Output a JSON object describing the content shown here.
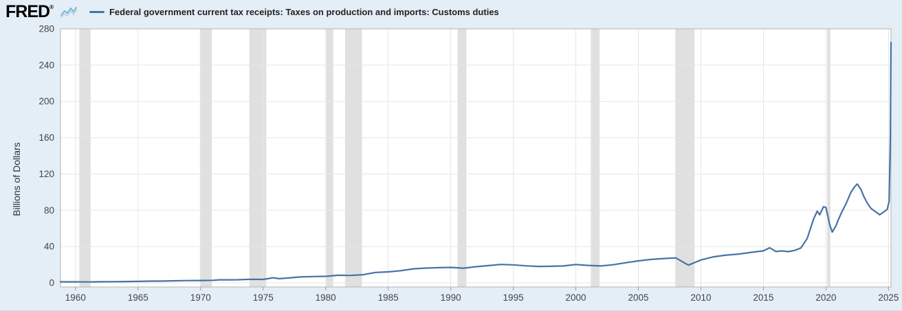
{
  "header": {
    "logo": "FRED",
    "logo_reg": "®",
    "legend_label": "Federal government current tax receipts: Taxes on production and imports: Customs duties"
  },
  "chart_data": {
    "type": "line",
    "title": "Federal government current tax receipts: Taxes on production and imports: Customs duties",
    "ylabel": "Billions of Dollars",
    "xlabel": "",
    "ylim": [
      0,
      280
    ],
    "y_ticks": [
      0,
      40,
      80,
      120,
      160,
      200,
      240,
      280
    ],
    "x_ticks": [
      1960,
      1965,
      1970,
      1975,
      1980,
      1985,
      1990,
      1995,
      2000,
      2005,
      2010,
      2015,
      2020,
      2025
    ],
    "xlim": [
      1958.8,
      2025.2
    ],
    "grid": true,
    "legend_position": "top-left",
    "line_color": "#4572a7",
    "recession_band_color": "#e0e0e0",
    "recessions": [
      [
        1960.3,
        1961.2
      ],
      [
        1969.95,
        1970.9
      ],
      [
        1973.9,
        1975.25
      ],
      [
        1980.05,
        1980.6
      ],
      [
        1981.55,
        1982.9
      ],
      [
        1990.55,
        1991.25
      ],
      [
        2001.2,
        2001.9
      ],
      [
        2007.95,
        2009.5
      ],
      [
        2020.1,
        2020.35
      ]
    ],
    "series": [
      {
        "name": "Customs duties",
        "points": [
          [
            1958.8,
            1.1
          ],
          [
            1960,
            1.1
          ],
          [
            1961,
            1.0
          ],
          [
            1962,
            1.2
          ],
          [
            1963,
            1.3
          ],
          [
            1964,
            1.4
          ],
          [
            1965,
            1.6
          ],
          [
            1966,
            1.9
          ],
          [
            1967,
            2.0
          ],
          [
            1968,
            2.3
          ],
          [
            1969,
            2.5
          ],
          [
            1970,
            2.6
          ],
          [
            1971,
            2.8
          ],
          [
            1971.5,
            3.3
          ],
          [
            1972,
            3.3
          ],
          [
            1973,
            3.4
          ],
          [
            1974,
            3.9
          ],
          [
            1975,
            3.8
          ],
          [
            1975.8,
            5.6
          ],
          [
            1976.3,
            4.6
          ],
          [
            1977,
            5.4
          ],
          [
            1978,
            6.5
          ],
          [
            1979,
            7.0
          ],
          [
            1980,
            7.2
          ],
          [
            1981,
            8.4
          ],
          [
            1982,
            8.2
          ],
          [
            1983,
            9.0
          ],
          [
            1984,
            11.5
          ],
          [
            1985,
            12.1
          ],
          [
            1986,
            13.4
          ],
          [
            1987,
            15.4
          ],
          [
            1988,
            16.3
          ],
          [
            1989,
            16.7
          ],
          [
            1990,
            17.0
          ],
          [
            1991,
            16.2
          ],
          [
            1992,
            17.8
          ],
          [
            1993,
            19.0
          ],
          [
            1994,
            20.3
          ],
          [
            1995,
            19.8
          ],
          [
            1996,
            18.8
          ],
          [
            1997,
            18.1
          ],
          [
            1998,
            18.2
          ],
          [
            1999,
            18.6
          ],
          [
            2000,
            20.2
          ],
          [
            2001,
            19.2
          ],
          [
            2002,
            18.6
          ],
          [
            2003,
            20.0
          ],
          [
            2004,
            22.2
          ],
          [
            2005,
            24.2
          ],
          [
            2006,
            25.8
          ],
          [
            2007,
            26.8
          ],
          [
            2008,
            27.5
          ],
          [
            2009,
            19.5
          ],
          [
            2010,
            25.2
          ],
          [
            2011,
            28.7
          ],
          [
            2012,
            30.6
          ],
          [
            2013,
            31.7
          ],
          [
            2014,
            33.6
          ],
          [
            2015,
            35.3
          ],
          [
            2015.5,
            38.7
          ],
          [
            2016,
            34.6
          ],
          [
            2016.5,
            35.2
          ],
          [
            2017,
            34.4
          ],
          [
            2017.5,
            35.8
          ],
          [
            2018,
            38.5
          ],
          [
            2018.5,
            49
          ],
          [
            2019,
            70
          ],
          [
            2019.3,
            79
          ],
          [
            2019.5,
            75
          ],
          [
            2019.8,
            84
          ],
          [
            2020,
            83
          ],
          [
            2020.3,
            64
          ],
          [
            2020.5,
            56
          ],
          [
            2020.8,
            63
          ],
          [
            2021,
            70
          ],
          [
            2021.3,
            79
          ],
          [
            2021.6,
            87
          ],
          [
            2022,
            100
          ],
          [
            2022.3,
            106
          ],
          [
            2022.5,
            109
          ],
          [
            2022.8,
            103
          ],
          [
            2023,
            96
          ],
          [
            2023.3,
            88
          ],
          [
            2023.6,
            82
          ],
          [
            2024,
            78
          ],
          [
            2024.3,
            75
          ],
          [
            2024.6,
            78
          ],
          [
            2024.9,
            81
          ],
          [
            2025.05,
            90
          ],
          [
            2025.15,
            160
          ],
          [
            2025.2,
            265
          ]
        ]
      }
    ]
  }
}
